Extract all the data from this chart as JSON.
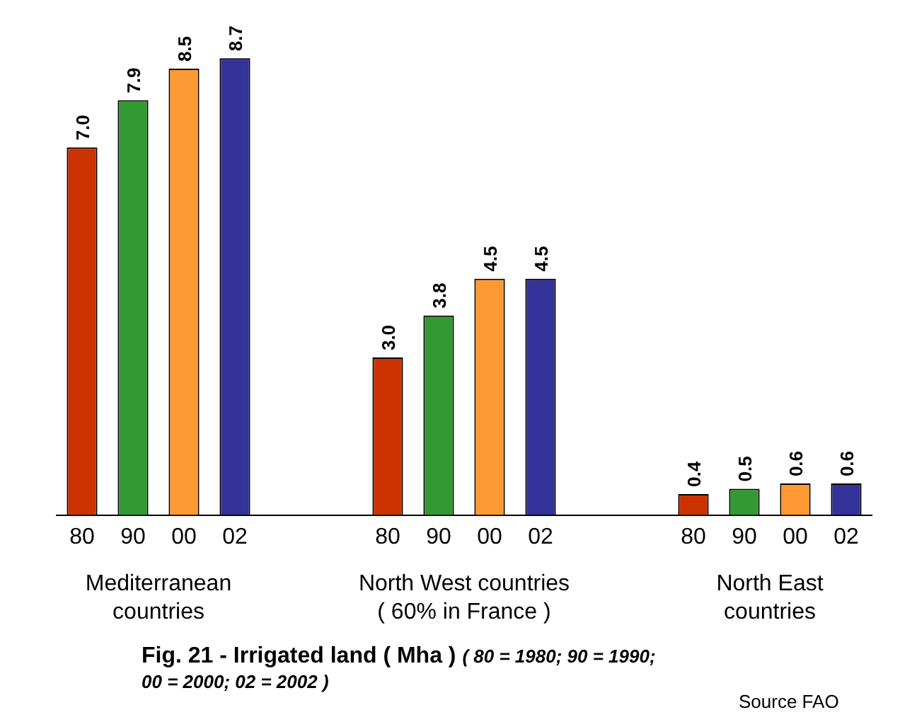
{
  "chart_data": {
    "type": "bar",
    "title": "Fig.  21 -   Irrigated land ( Mha )",
    "subtitle": "( 80 = 1980; 90 = 1990; 00 = 2000; 02 = 2002 )",
    "categories": [
      "80",
      "90",
      "00",
      "02",
      null,
      null,
      "80",
      "90",
      "00",
      "02",
      null,
      null,
      "80",
      "90",
      "00",
      "02"
    ],
    "values": [
      7.0,
      7.9,
      8.5,
      8.7,
      null,
      null,
      3.0,
      3.8,
      4.5,
      4.5,
      null,
      null,
      0.4,
      0.5,
      0.6,
      0.6
    ],
    "value_labels": [
      "7.0",
      "7.9",
      "8.5",
      "8.7",
      null,
      null,
      "3.0",
      "3.8",
      "4.5",
      "4.5",
      null,
      null,
      "0.4",
      "0.5",
      "0.6",
      "0.6"
    ],
    "colors": [
      "#cc3300",
      "#339933",
      "#ff9933",
      "#333399",
      null,
      null,
      "#cc3300",
      "#339933",
      "#ff9933",
      "#333399",
      null,
      null,
      "#cc3300",
      "#339933",
      "#ff9933",
      "#333399"
    ],
    "grid": false,
    "legend": false,
    "annotations": [
      "Mediterranean\ncountries",
      "North West countries\n( 60% in France )",
      "North East\ncountries",
      "Source FAO"
    ]
  }
}
